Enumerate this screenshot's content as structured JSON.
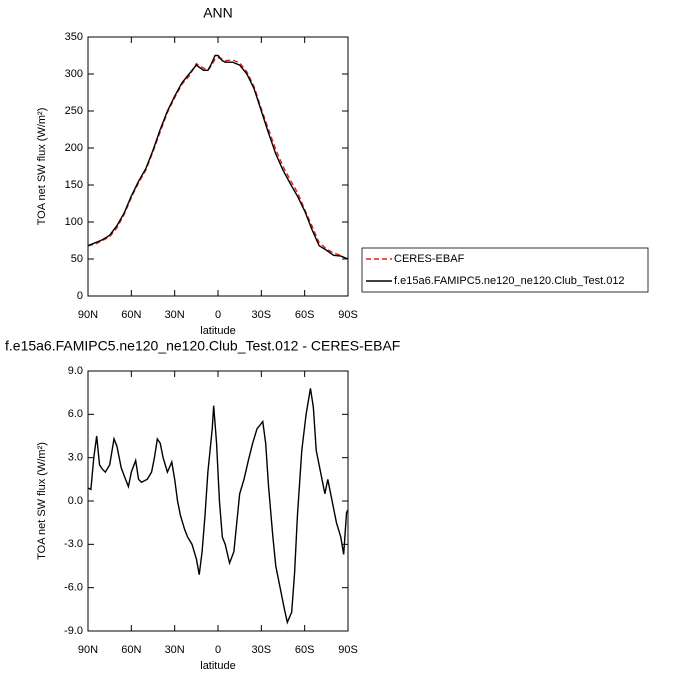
{
  "chart_data": [
    {
      "type": "line",
      "title": "ANN",
      "xlabel": "latitude",
      "ylabel": "TOA net SW flux (W/m²)",
      "x": [
        90,
        85,
        80,
        75,
        70,
        65,
        60,
        55,
        50,
        45,
        40,
        35,
        30,
        25,
        20,
        15,
        10,
        7,
        5,
        2,
        0,
        -3,
        -5,
        -10,
        -15,
        -20,
        -25,
        -30,
        -35,
        -40,
        -45,
        -50,
        -55,
        -60,
        -65,
        -70,
        -75,
        -80,
        -85,
        -90
      ],
      "series": [
        {
          "name": "CERES-EBAF",
          "color": "#e0201b",
          "line_style": "dashed",
          "values": [
            68,
            70,
            75,
            80,
            92,
            110,
            133,
            153,
            170,
            195,
            222,
            248,
            268,
            286,
            297,
            314,
            308,
            305,
            310,
            320,
            322,
            320,
            318,
            319,
            315,
            303,
            283,
            253,
            225,
            198,
            175,
            157,
            140,
            117,
            95,
            72,
            64,
            58,
            55,
            48
          ]
        },
        {
          "name": "f.e15a6.FAMIPC5.ne120_ne120.Club_Test.012",
          "color": "#000000",
          "line_style": "solid",
          "values": [
            68,
            72,
            76,
            82,
            95,
            112,
            135,
            155,
            172,
            197,
            225,
            250,
            270,
            288,
            300,
            312,
            305,
            305,
            312,
            325,
            325,
            318,
            316,
            316,
            312,
            300,
            280,
            250,
            220,
            192,
            170,
            152,
            135,
            115,
            90,
            68,
            62,
            55,
            54,
            50
          ]
        }
      ],
      "xlim": [
        90,
        -90
      ],
      "xticks": [
        {
          "value": 90,
          "label": "90N"
        },
        {
          "value": 60,
          "label": "60N"
        },
        {
          "value": 30,
          "label": "30N"
        },
        0,
        {
          "value": -30,
          "label": "30S"
        },
        {
          "value": -60,
          "label": "60S"
        },
        {
          "value": -90,
          "label": "90S"
        }
      ],
      "ylim": [
        0,
        350
      ],
      "yticks": [
        0,
        50,
        100,
        150,
        200,
        250,
        300,
        350
      ],
      "legend": "right"
    },
    {
      "type": "line",
      "title": "f.e15a6.FAMIPC5.ne120_ne120.Club_Test.012 - CERES-EBAF",
      "xlabel": "latitude",
      "ylabel": "TOA net SW flux (W/m²)",
      "x": [
        90,
        88,
        86,
        84,
        82,
        80,
        78,
        75,
        72,
        70,
        67,
        64,
        62,
        60,
        57,
        55,
        53,
        49,
        46,
        44,
        42,
        40,
        38,
        35,
        32,
        30,
        28,
        26,
        23,
        21,
        18,
        15,
        13,
        11,
        9,
        7,
        4,
        3,
        1,
        -1,
        -3,
        -5,
        -8,
        -11,
        -13,
        -15,
        -18,
        -21,
        -24,
        -27,
        -31,
        -33,
        -35,
        -38,
        -40,
        -43,
        -46,
        -48,
        -51,
        -53,
        -55,
        -58,
        -61,
        -64,
        -66,
        -68,
        -71,
        -74,
        -76,
        -78,
        -80,
        -82,
        -85,
        -87,
        -89,
        -90
      ],
      "values": [
        0.9,
        0.8,
        3,
        4.5,
        2.5,
        2.2,
        2.0,
        2.5,
        4.3,
        3.8,
        2.3,
        1.5,
        1.0,
        2.0,
        2.8,
        1.5,
        1.3,
        1.5,
        2.0,
        3.0,
        4.3,
        4.0,
        3.0,
        2.0,
        2.7,
        1.5,
        0,
        -1.0,
        -2.0,
        -2.5,
        -3.0,
        -4.0,
        -5.1,
        -3.5,
        -1.0,
        2.0,
        5.0,
        6.6,
        4.0,
        0,
        -2.5,
        -3.0,
        -4.3,
        -3.5,
        -1.5,
        0.5,
        1.5,
        2.8,
        4.0,
        5.0,
        5.5,
        4.0,
        1.0,
        -2.5,
        -4.5,
        -6.0,
        -7.5,
        -8.4,
        -7.7,
        -5.0,
        -1.0,
        3.5,
        6.0,
        7.8,
        6.5,
        3.5,
        2.0,
        0.5,
        1.5,
        0.5,
        -0.5,
        -1.5,
        -2.5,
        -3.7,
        -0.8,
        -0.6
      ],
      "color": "#000000",
      "xlim": [
        90,
        -90
      ],
      "xticks": [
        {
          "value": 90,
          "label": "90N"
        },
        {
          "value": 60,
          "label": "60N"
        },
        {
          "value": 30,
          "label": "30N"
        },
        0,
        {
          "value": -30,
          "label": "30S"
        },
        {
          "value": -60,
          "label": "60S"
        },
        {
          "value": -90,
          "label": "90S"
        }
      ],
      "ylim": [
        -9,
        9
      ],
      "yticks": [
        {
          "value": 9,
          "label": "9.0"
        },
        {
          "value": 6,
          "label": "6.0"
        },
        {
          "value": 3,
          "label": "3.0"
        },
        {
          "value": 0,
          "label": "0.0"
        },
        {
          "value": -3,
          "label": "-3.0"
        },
        {
          "value": -6,
          "label": "-6.0"
        },
        {
          "value": -9,
          "label": "-9.0"
        }
      ]
    }
  ]
}
